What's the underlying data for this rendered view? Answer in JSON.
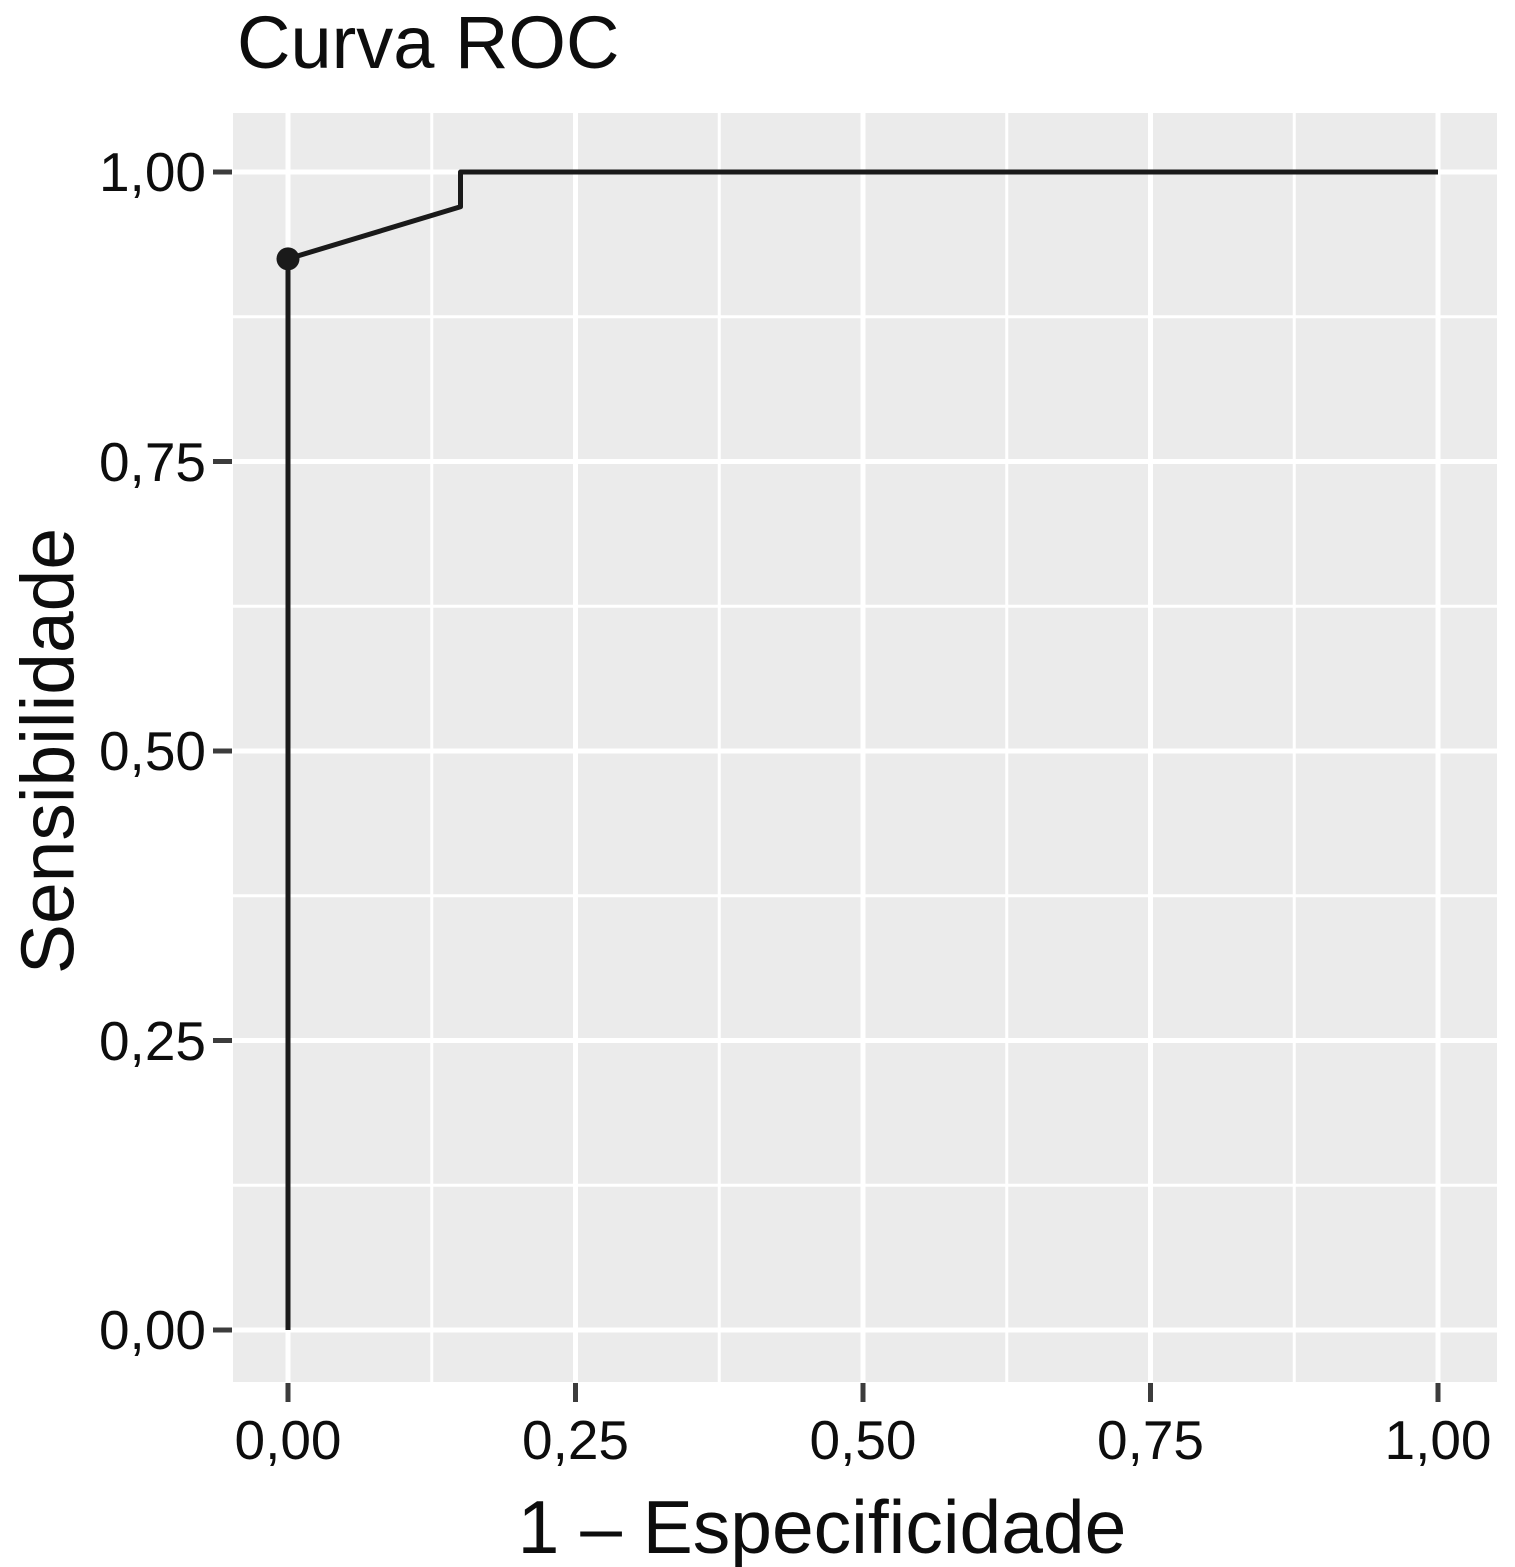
{
  "chart_data": {
    "type": "line",
    "subtype": "roc-curve",
    "title": "Curva ROC",
    "xlabel": "1 – Especificidade",
    "ylabel": "Sensibilidade",
    "xlim": [
      0,
      1
    ],
    "ylim": [
      0,
      1
    ],
    "grid": "major+minor",
    "legend": "none",
    "panel_background": "#ebebeb",
    "gridline_color": "#ffffff",
    "tick_mark_color": "#3c3c3c",
    "line_color": "#1a1a1a",
    "text_color": "#0d0d0d",
    "x_ticks": [
      {
        "value": 0.0,
        "label": "0,00"
      },
      {
        "value": 0.25,
        "label": "0,25"
      },
      {
        "value": 0.5,
        "label": "0,50"
      },
      {
        "value": 0.75,
        "label": "0,75"
      },
      {
        "value": 1.0,
        "label": "1,00"
      }
    ],
    "y_ticks": [
      {
        "value": 0.0,
        "label": "0,00"
      },
      {
        "value": 0.25,
        "label": "0,25"
      },
      {
        "value": 0.5,
        "label": "0,50"
      },
      {
        "value": 0.75,
        "label": "0,75"
      },
      {
        "value": 1.0,
        "label": "1,00"
      }
    ],
    "x_minor_ticks": [
      0.125,
      0.375,
      0.625,
      0.875
    ],
    "y_minor_ticks": [
      0.125,
      0.375,
      0.625,
      0.875
    ],
    "series": [
      {
        "name": "ROC curve",
        "points": [
          [
            0,
            0
          ],
          [
            0,
            0.925
          ],
          [
            0.15,
            0.97
          ],
          [
            0.15,
            1.0
          ],
          [
            1.0,
            1.0
          ]
        ]
      }
    ],
    "cutoff_point": {
      "x": 0,
      "y": 0.925,
      "shape": "filled-circle"
    }
  }
}
